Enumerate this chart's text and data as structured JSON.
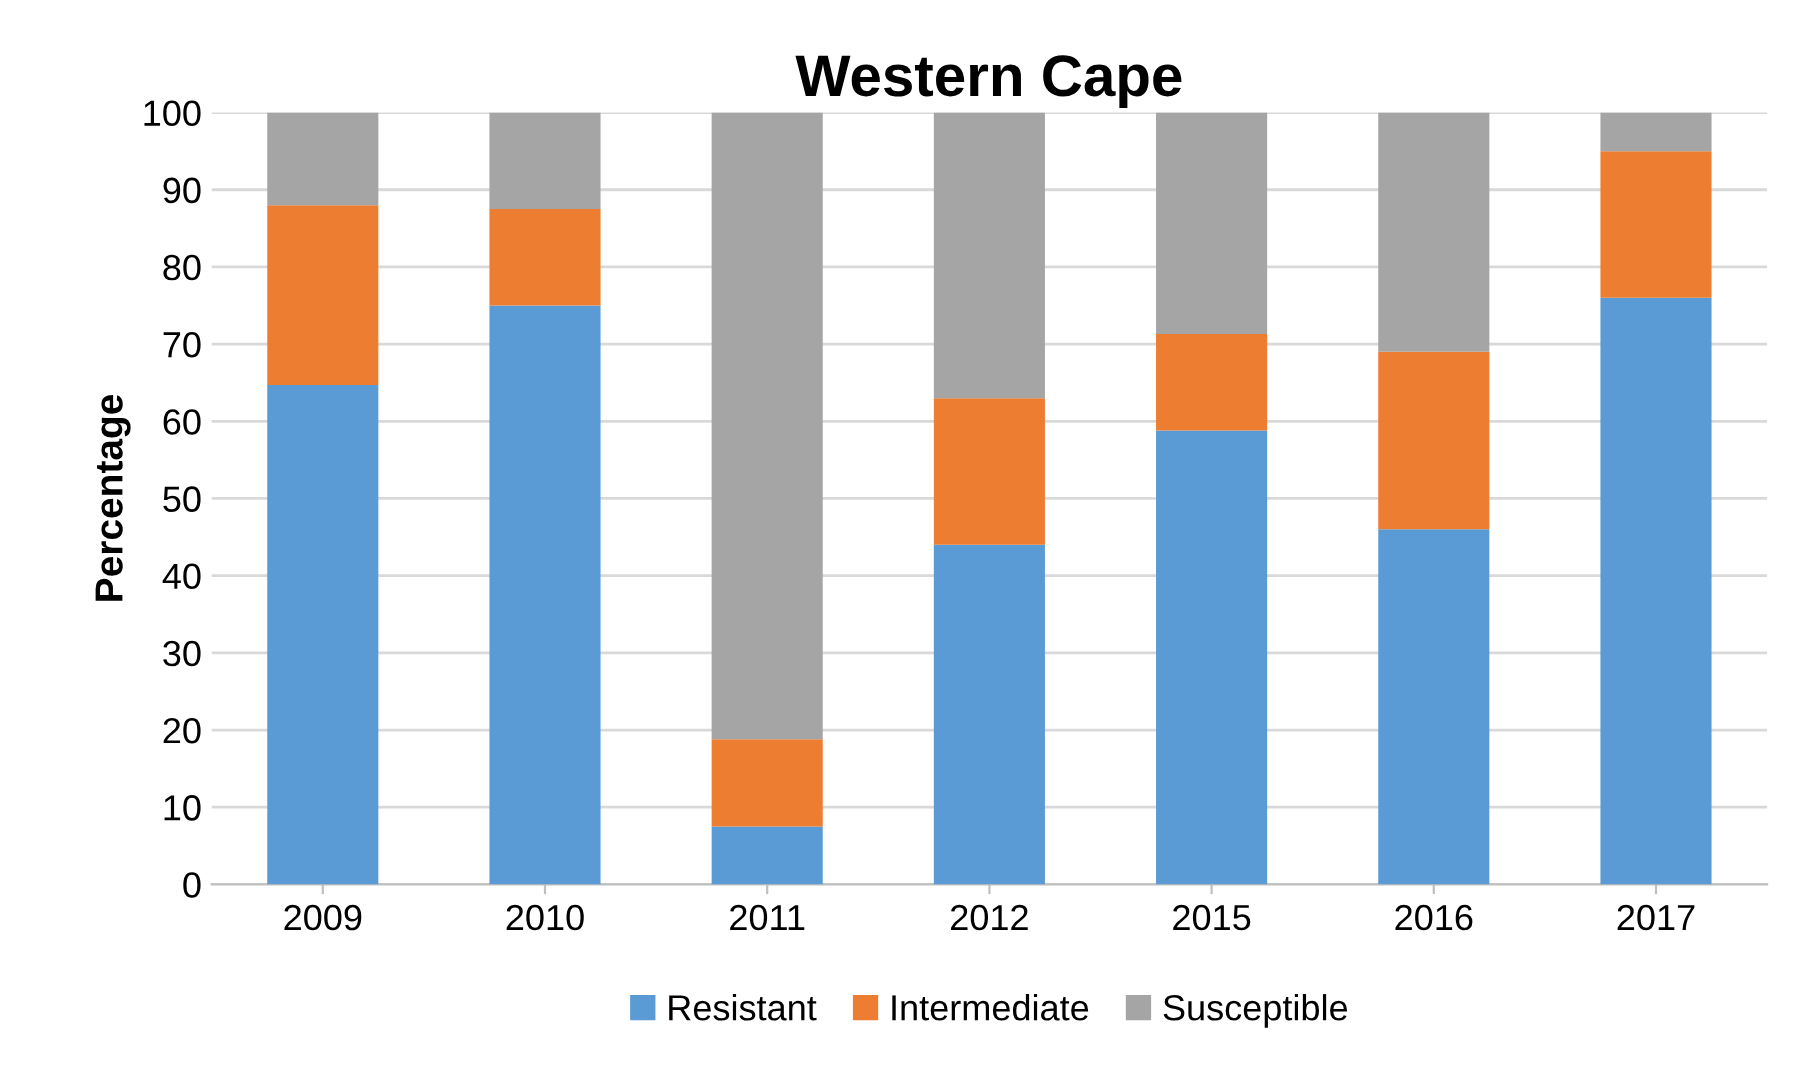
{
  "chart_data": {
    "type": "bar",
    "title": "Western Cape",
    "ylabel": "Percentage",
    "stacked": true,
    "categories": [
      "2009",
      "2010",
      "2011",
      "2012",
      "2015",
      "2016",
      "2017"
    ],
    "series": [
      {
        "name": "Resistant",
        "color": "#5b9bd5",
        "values": [
          64.7,
          75,
          7.5,
          44,
          58.8,
          46,
          76
        ]
      },
      {
        "name": "Intermediate",
        "color": "#ed7d31",
        "values": [
          23.3,
          12.5,
          11.3,
          19,
          12.5,
          23,
          19
        ]
      },
      {
        "name": "Susceptible",
        "color": "#a5a5a5",
        "values": [
          12,
          12.5,
          81.2,
          37,
          28.7,
          31,
          5
        ]
      }
    ],
    "ylim": [
      0,
      100
    ],
    "yticks": [
      0,
      10,
      20,
      30,
      40,
      50,
      60,
      70,
      80,
      90,
      100
    ],
    "grid": "y",
    "legend": "bottom"
  }
}
